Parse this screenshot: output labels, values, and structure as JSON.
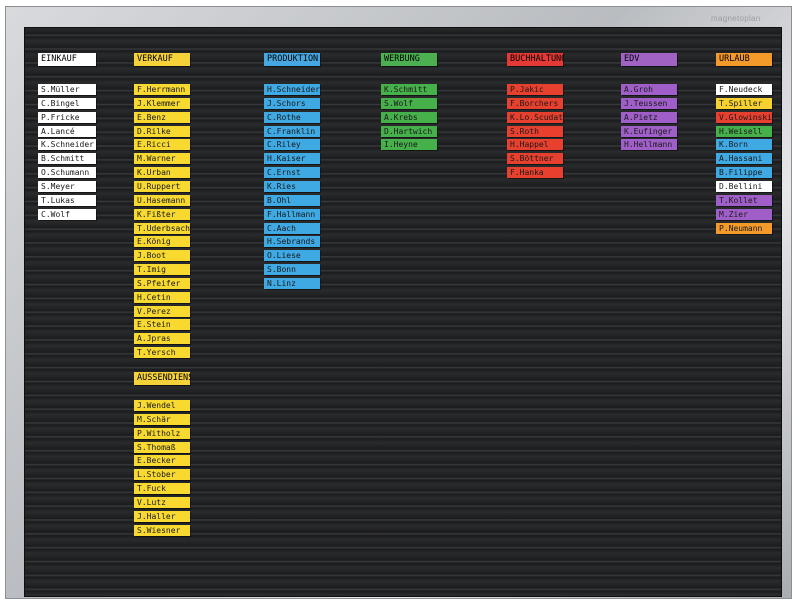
{
  "board": {
    "brand": "magnetoplan",
    "columns": [
      {
        "id": "einkauf",
        "header": "EINKAUF",
        "header_color": "#ffffff",
        "card_color": "#ffffff",
        "cards": [
          "S.Müller",
          "C.Bingel",
          "P.Fricke",
          "A.Lancé",
          "K.Schneider",
          "B.Schmitt",
          "O.Schumann",
          "S.Meyer",
          "T.Lukas",
          "C.Wolf"
        ]
      },
      {
        "id": "verkauf",
        "header": "VERKAUF",
        "header_color": "#f5d23a",
        "card_color": "#f7d930",
        "cards": [
          "F.Herrmann",
          "J.Klemmer",
          "E.Benz",
          "D.Rilke",
          "E.Ricci",
          "M.Warner",
          "K.Urban",
          "U.Ruppert",
          "U.Hasemann",
          "K.Fißter",
          "T.Uderbsach",
          "E.König",
          "J.Boot",
          "T.Imig",
          "S.Pfeifer",
          "H.Cetin",
          "V.Perez",
          "E.Stein",
          "A.Jpras",
          "T.Yersch"
        ]
      },
      {
        "id": "aussendienst",
        "header": "AUSSENDIENST",
        "header_color": "#f5d23a",
        "card_color": "#f7d930",
        "cards": [
          "J.Wendel",
          "M.Schär",
          "P.Witholz",
          "S.Thomaß",
          "E.Becker",
          "L.Stober",
          "T.Fuck",
          "V.Lutz",
          "J.Haller",
          "S.Wiesner"
        ]
      },
      {
        "id": "produktion",
        "header": "PRODUKTION",
        "header_color": "#46a8e0",
        "card_color": "#3fa9e4",
        "cards": [
          "H.Schneider",
          "J.Schors",
          "C.Rothe",
          "C.Franklin",
          "C.Riley",
          "H.Kaiser",
          "C.Ernst",
          "K.Ries",
          "B.Ohl",
          "F.Hallmann",
          "C.Aach",
          "H.Sebrands",
          "O.Liese",
          "S.Bonn",
          "N.Linz"
        ]
      },
      {
        "id": "werbung",
        "header": "WERBUNG",
        "header_color": "#4caf50",
        "card_color": "#46b04a",
        "cards": [
          "K.Schmitt",
          "S.Wolf",
          "A.Krebs",
          "D.Hartwich",
          "I.Heyne"
        ]
      },
      {
        "id": "buchhaltung",
        "header": "BUCHHALTUNG",
        "header_color": "#e53935",
        "card_color": "#e8402f",
        "cards": [
          "P.Jakic",
          "F.Borchers",
          "K.Lo.Scudato",
          "S.Roth",
          "H.Happel",
          "S.Böttner",
          "F.Hanka"
        ]
      },
      {
        "id": "edv",
        "header": "EDV",
        "header_color": "#a063c4",
        "card_color": "#a05fc8",
        "cards": [
          "A.Groh",
          "J.Teussen",
          "A.Pietz",
          "K.Eufinger",
          "H.Hellmann"
        ]
      },
      {
        "id": "urlaub",
        "header": "URLAUB",
        "header_color": "#f39a2b",
        "card_color": "#f39a2b",
        "cards": [
          "F.Neudeck",
          "T.Spiller",
          "V.Glowinski",
          "H.Weisell",
          "K.Born",
          "A.Hassani",
          "B.Filippe",
          "D.Bellini",
          "T.Kollet",
          "M.Zier",
          "P.Neumann"
        ],
        "card_colors": [
          "#ffffff",
          "#f6d12f",
          "#e8402f",
          "#46b04a",
          "#3fa9e4",
          "#3fa9e4",
          "#3fa9e4",
          "#ffffff",
          "#a05fc8",
          "#a05fc8",
          "#f39a2b"
        ]
      }
    ]
  }
}
